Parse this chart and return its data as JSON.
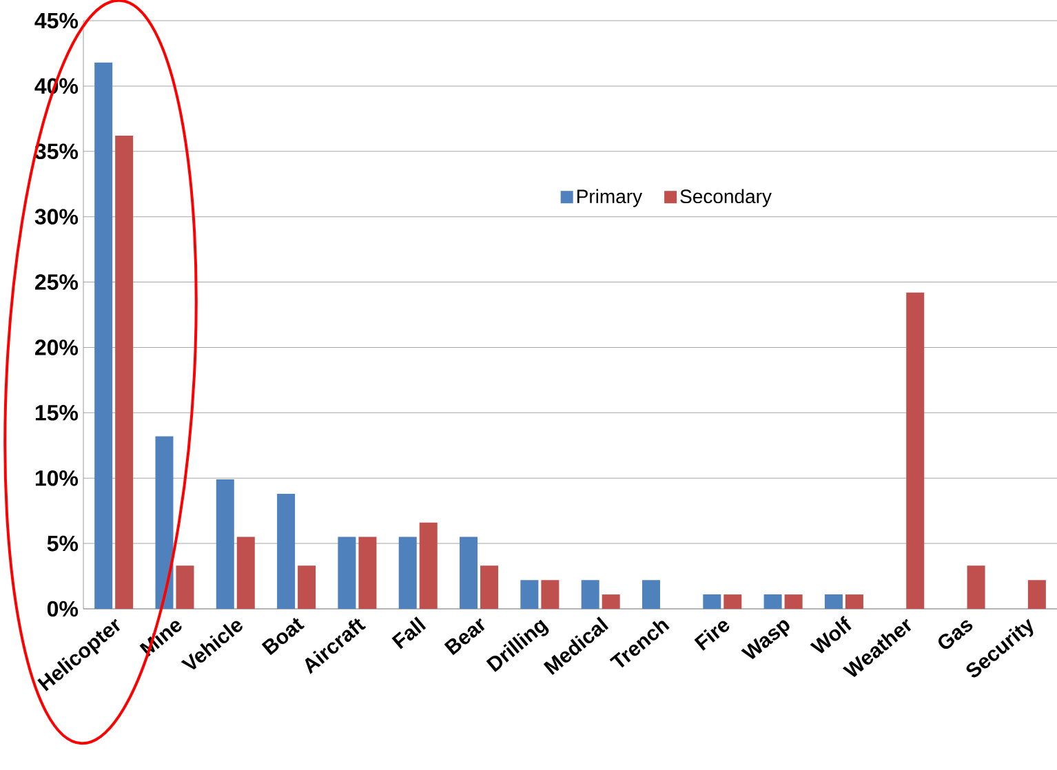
{
  "chart_data": {
    "type": "bar",
    "categories": [
      "Helicopter",
      "Mine",
      "Vehicle",
      "Boat",
      "Aircraft",
      "Fall",
      "Bear",
      "Drilling",
      "Medical",
      "Trench",
      "Fire",
      "Wasp",
      "Wolf",
      "Weather",
      "Gas",
      "Security"
    ],
    "series": [
      {
        "name": "Primary",
        "color": "#4f81bd",
        "values": [
          41.8,
          13.2,
          9.9,
          8.8,
          5.5,
          5.5,
          5.5,
          2.2,
          2.2,
          2.2,
          1.1,
          1.1,
          1.1,
          null,
          null,
          null
        ]
      },
      {
        "name": "Secondary",
        "color": "#c0504d",
        "values": [
          36.2,
          3.3,
          5.5,
          3.3,
          5.5,
          6.6,
          3.3,
          2.2,
          1.1,
          null,
          1.1,
          1.1,
          1.1,
          24.2,
          3.3,
          2.2
        ]
      }
    ],
    "ylim": [
      0,
      45
    ],
    "yticks": [
      {
        "value": 0,
        "label": "0%"
      },
      {
        "value": 5,
        "label": "5%"
      },
      {
        "value": 10,
        "label": "10%"
      },
      {
        "value": 15,
        "label": "15%"
      },
      {
        "value": 20,
        "label": "20%"
      },
      {
        "value": 25,
        "label": "25%"
      },
      {
        "value": 30,
        "label": "30%"
      },
      {
        "value": 35,
        "label": "35%"
      },
      {
        "value": 40,
        "label": "40%"
      },
      {
        "value": 45,
        "label": "45%"
      }
    ],
    "grid": "y",
    "legend": "top"
  }
}
